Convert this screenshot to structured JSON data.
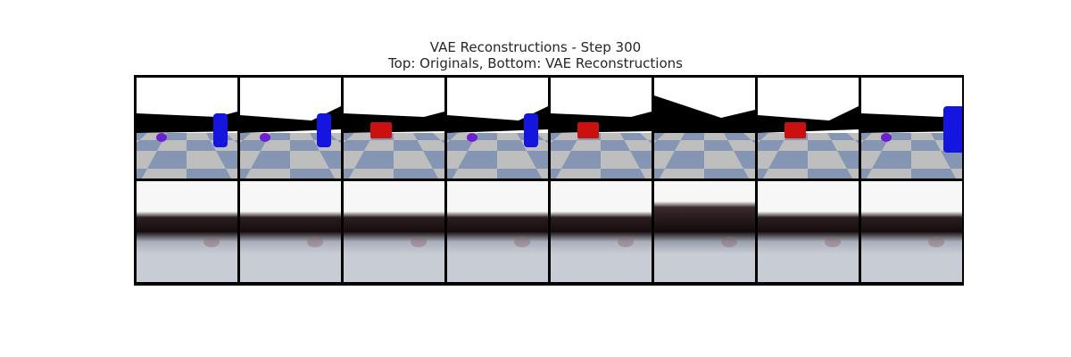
{
  "title": "VAE Reconstructions - Step 300",
  "subtitle": "Top: Originals, Bottom: VAE Reconstructions",
  "colors": {
    "sky": "#ffffff",
    "wall": "#000000",
    "floor_light": "#bebebe",
    "floor_blue": "#8496b4",
    "blue_object": "#1515e0",
    "red_object": "#cc1010",
    "purple_object": "#6a22d0",
    "recon_sky": "#f7f7f7",
    "recon_floor": "#c8ccd4"
  },
  "originals": [
    {
      "wall": "flat",
      "objects": [
        "purple-sphere",
        "blue-cylinder"
      ]
    },
    {
      "wall": "slope-right",
      "objects": [
        "purple-sphere",
        "blue-cylinder"
      ]
    },
    {
      "wall": "flat",
      "objects": [
        "red-cube"
      ]
    },
    {
      "wall": "slope-right",
      "objects": [
        "purple-sphere",
        "blue-cylinder"
      ]
    },
    {
      "wall": "flat",
      "objects": [
        "red-cube"
      ]
    },
    {
      "wall": "slope-left",
      "objects": []
    },
    {
      "wall": "slope-right",
      "objects": [
        "red-cube"
      ]
    },
    {
      "wall": "flat",
      "objects": [
        "purple-sphere",
        "blue-cylinder-large"
      ]
    }
  ],
  "reconstructions": [
    {
      "style": "blurry"
    },
    {
      "style": "blurry"
    },
    {
      "style": "blurry"
    },
    {
      "style": "blurry"
    },
    {
      "style": "blurry"
    },
    {
      "style": "blurry-dark"
    },
    {
      "style": "blurry"
    },
    {
      "style": "blurry"
    }
  ]
}
